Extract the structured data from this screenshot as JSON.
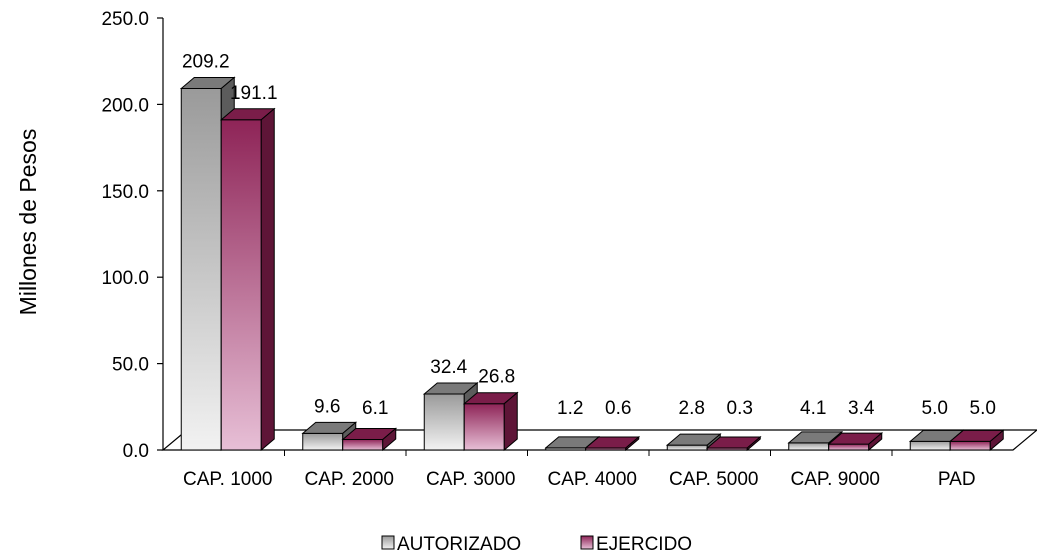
{
  "chart_data": {
    "type": "bar",
    "title": "",
    "xlabel": "",
    "ylabel": "Millones de Pesos",
    "ylim": [
      0,
      250
    ],
    "yticks": [
      "0.0",
      "50.0",
      "100.0",
      "150.0",
      "200.0",
      "250.0"
    ],
    "categories": [
      "CAP. 1000",
      "CAP. 2000",
      "CAP. 3000",
      "CAP. 4000",
      "CAP. 5000",
      "CAP. 9000",
      "PAD"
    ],
    "series": [
      {
        "name": "AUTORIZADO",
        "values": [
          209.2,
          9.6,
          32.4,
          1.2,
          2.8,
          4.1,
          5.0
        ],
        "labels": [
          "209.2",
          "9.6",
          "32.4",
          "1.2",
          "2.8",
          "4.1",
          "5.0"
        ],
        "color": "#a0a0a0"
      },
      {
        "name": "EJERCIDO",
        "values": [
          191.1,
          6.1,
          26.8,
          0.6,
          0.3,
          3.4,
          5.0
        ],
        "labels": [
          "191.1",
          "6.1",
          "26.8",
          "0.6",
          "0.3",
          "3.4",
          "5.0"
        ],
        "color": "#9b2f63"
      }
    ],
    "grid": false,
    "legend_position": "bottom",
    "style": "3d-clustered-column"
  }
}
